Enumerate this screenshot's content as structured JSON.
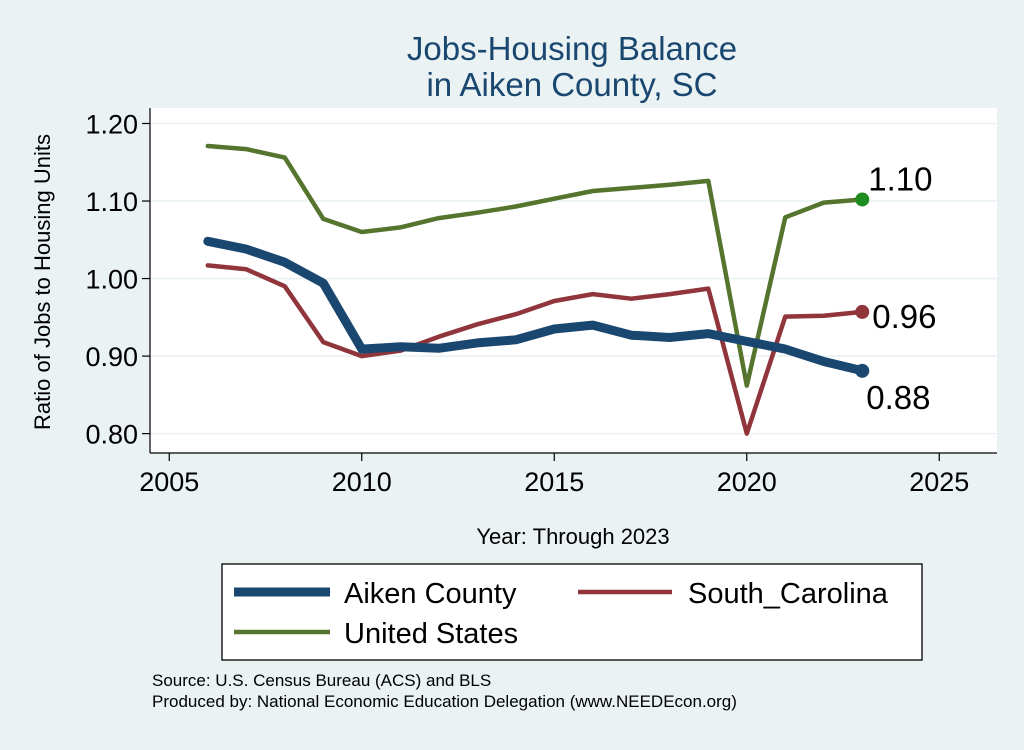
{
  "chart_data": {
    "type": "line",
    "title": [
      "Jobs-Housing Balance",
      "in Aiken County, SC"
    ],
    "xlabel": "Year: Through 2023",
    "ylabel": "Ratio of Jobs to Housing Units",
    "xlim": [
      2004.5,
      2026.5
    ],
    "ylim": [
      0.775,
      1.22
    ],
    "xticks": [
      2005,
      2010,
      2015,
      2020,
      2025
    ],
    "yticks": [
      0.8,
      0.9,
      1.0,
      1.1,
      1.2
    ],
    "xtick_labels": [
      "2005",
      "2010",
      "2015",
      "2020",
      "2025"
    ],
    "ytick_labels": [
      "0.80",
      "0.90",
      "1.00",
      "1.10",
      "1.20"
    ],
    "grid": true,
    "legend_position": "bottom",
    "series": [
      {
        "name": "Aiken County",
        "color": "#1a476f",
        "x": [
          2006,
          2007,
          2008,
          2009,
          2010,
          2011,
          2012,
          2013,
          2014,
          2015,
          2016,
          2017,
          2018,
          2019,
          2020,
          2021,
          2022,
          2023
        ],
        "y": [
          1.048,
          1.038,
          1.021,
          0.994,
          0.909,
          0.912,
          0.91,
          0.917,
          0.921,
          0.935,
          0.94,
          0.927,
          0.924,
          0.929,
          0.919,
          0.909,
          0.893,
          0.881
        ],
        "end_label": "0.88"
      },
      {
        "name": "South_Carolina",
        "color": "#90353b",
        "x": [
          2006,
          2007,
          2008,
          2009,
          2010,
          2011,
          2012,
          2013,
          2014,
          2015,
          2016,
          2017,
          2018,
          2019,
          2020,
          2021,
          2022,
          2023
        ],
        "y": [
          1.017,
          1.012,
          0.99,
          0.918,
          0.9,
          0.907,
          0.925,
          0.941,
          0.954,
          0.971,
          0.98,
          0.974,
          0.98,
          0.987,
          0.8,
          0.951,
          0.952,
          0.957
        ],
        "end_label": "0.96"
      },
      {
        "name": "United States",
        "color": "#55752f",
        "x": [
          2006,
          2007,
          2008,
          2009,
          2010,
          2011,
          2012,
          2013,
          2014,
          2015,
          2016,
          2017,
          2018,
          2019,
          2020,
          2021,
          2022,
          2023
        ],
        "y": [
          1.171,
          1.167,
          1.156,
          1.077,
          1.06,
          1.066,
          1.078,
          1.085,
          1.093,
          1.103,
          1.113,
          1.117,
          1.121,
          1.126,
          0.862,
          1.079,
          1.098,
          1.102
        ],
        "end_label": "1.10"
      }
    ],
    "legend_items": [
      "Aiken County",
      "South_Carolina",
      "United States"
    ],
    "notes": [
      "Source: U.S. Census Bureau (ACS) and BLS",
      "Produced by: National Economic Education Delegation (www.NEEDEcon.org)"
    ]
  }
}
